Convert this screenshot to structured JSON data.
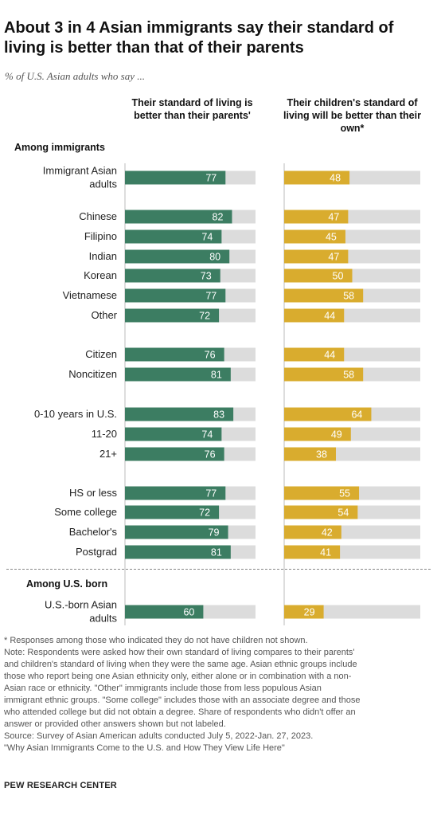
{
  "title": "About 3 in 4 Asian immigrants say their standard of living is better than that of their parents",
  "subtitle": "% of U.S. Asian adults who say ...",
  "colors": {
    "left": "#3c7d62",
    "right": "#d9ac2e",
    "track": "#dcdcdc"
  },
  "chart_data": {
    "type": "bar",
    "orientation": "horizontal",
    "xlim": [
      0,
      100
    ],
    "series": [
      {
        "name": "Their standard of living is better than their parents'",
        "values": [
          77,
          82,
          74,
          80,
          73,
          77,
          72,
          76,
          81,
          83,
          74,
          76,
          77,
          72,
          79,
          81,
          60
        ]
      },
      {
        "name": "Their children's standard of living will be better than their own*",
        "values": [
          48,
          47,
          45,
          47,
          50,
          58,
          44,
          44,
          58,
          64,
          49,
          38,
          55,
          54,
          42,
          41,
          29
        ]
      }
    ],
    "sections": [
      "Among immigrants",
      "Among U.S. born"
    ],
    "categories": [
      {
        "label": [
          "Immigrant Asian",
          "adults"
        ]
      },
      {
        "label": [
          "Chinese"
        ]
      },
      {
        "label": [
          "Filipino"
        ]
      },
      {
        "label": [
          "Indian"
        ]
      },
      {
        "label": [
          "Korean"
        ]
      },
      {
        "label": [
          "Vietnamese"
        ]
      },
      {
        "label": [
          "Other"
        ]
      },
      {
        "label": [
          "Citizen"
        ]
      },
      {
        "label": [
          "Noncitizen"
        ]
      },
      {
        "label": [
          "0-10 years in U.S."
        ]
      },
      {
        "label": [
          "11-20"
        ]
      },
      {
        "label": [
          "21+"
        ]
      },
      {
        "label": [
          "HS or less"
        ]
      },
      {
        "label": [
          "Some college"
        ]
      },
      {
        "label": [
          "Bachelor's"
        ]
      },
      {
        "label": [
          "Postgrad"
        ]
      },
      {
        "label": [
          "U.S.-born Asian",
          "adults"
        ]
      }
    ]
  },
  "notes": {
    "asterisk": "* Responses among those who indicated they do not have children not shown.",
    "note": "Note: Respondents were asked how their own standard of living compares to their parents'\nand children's standard of living when they were the same age. Asian ethnic groups include\nthose who report being one Asian ethnicity only, either alone or in combination with a non-\nAsian race or ethnicity. \"Other\" immigrants include those from less populous Asian\nimmigrant ethnic groups. \"Some college\" includes those with an associate degree and those\nwho attended college but did not obtain a degree. Share of respondents who didn't offer an\nanswer or provided other answers shown but not labeled.",
    "source": "Source: Survey of Asian American adults conducted July 5, 2022-Jan. 27, 2023.",
    "report": "\"Why Asian Immigrants Come to the U.S. and How They View Life Here\""
  },
  "brand": "PEW RESEARCH CENTER"
}
